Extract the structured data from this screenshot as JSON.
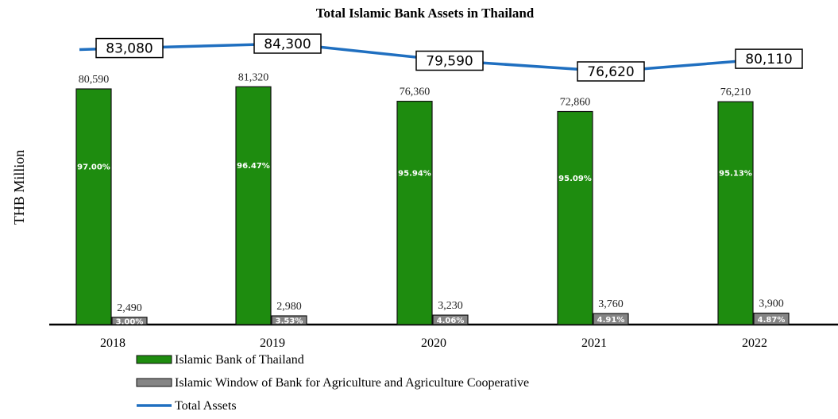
{
  "chart_data": {
    "type": "bar",
    "title": "Total Islamic Bank Assets in Thailand",
    "ylabel": "THB Million",
    "xlabel": "",
    "categories": [
      "2018",
      "2019",
      "2020",
      "2021",
      "2022"
    ],
    "ylim": [
      0,
      85000
    ],
    "grid": false,
    "legend_position": "bottom",
    "series": [
      {
        "name": "Islamic Bank of Thailand",
        "type": "bar",
        "color": "#1e8c0f",
        "values": [
          80590,
          81320,
          76360,
          72860,
          76210
        ],
        "value_labels": [
          "80,590",
          "81,320",
          "76,360",
          "72,860",
          "76,210"
        ],
        "share_labels": [
          "97.00%",
          "96.47%",
          "95.94%",
          "95.09%",
          "95.13%"
        ]
      },
      {
        "name": "Islamic Window of Bank for Agriculture and Agriculture Cooperative",
        "type": "bar",
        "color": "#858585",
        "values": [
          2490,
          2980,
          3230,
          3760,
          3900
        ],
        "value_labels": [
          "2,490",
          "2,980",
          "3,230",
          "3,760",
          "3,900"
        ],
        "share_labels": [
          "3.00%",
          "3.53%",
          "4.06%",
          "4.91%",
          "4.87%"
        ]
      },
      {
        "name": "Total Assets",
        "type": "line",
        "color": "#1f6fc0",
        "values": [
          83080,
          84300,
          79590,
          76620,
          80110
        ],
        "value_labels": [
          "83,080",
          "84,300",
          "79,590",
          "76,620",
          "80,110"
        ]
      }
    ]
  }
}
